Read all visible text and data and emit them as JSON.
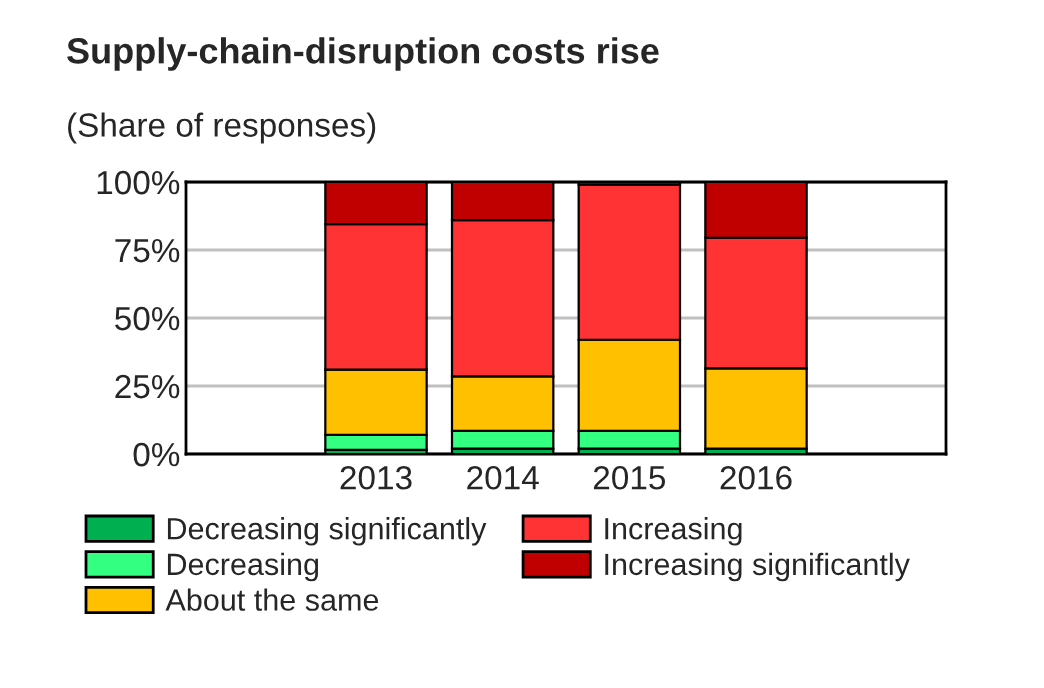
{
  "chart_data": {
    "type": "bar",
    "title": "Supply-chain-disruption costs rise",
    "subtitle": "(Share of responses)",
    "stacked": true,
    "categories": [
      null,
      "2013",
      "2014",
      "2015",
      "2016",
      null
    ],
    "series": [
      {
        "name": "Decreasing significantly",
        "color": "#00b050",
        "values": [
          null,
          1.5,
          2,
          2,
          2,
          null
        ]
      },
      {
        "name": "Decreasing",
        "color": "#33ff80",
        "values": [
          null,
          5.5,
          6.5,
          6.5,
          0,
          null
        ]
      },
      {
        "name": "About the same",
        "color": "#ffc000",
        "values": [
          null,
          24,
          20,
          33.5,
          29.5,
          null
        ]
      },
      {
        "name": "Increasing",
        "color": "#ff3333",
        "values": [
          null,
          53.5,
          57.5,
          57,
          48,
          null
        ]
      },
      {
        "name": "Increasing significantly",
        "color": "#c00000",
        "values": [
          null,
          15.5,
          14,
          1,
          20.5,
          null
        ]
      }
    ],
    "ylim": [
      0,
      100
    ],
    "yticks": [
      {
        "value": 0,
        "label": "0%"
      },
      {
        "value": 25,
        "label": "25%"
      },
      {
        "value": 50,
        "label": "50%"
      },
      {
        "value": 75,
        "label": "75%"
      },
      {
        "value": 100,
        "label": "100%"
      }
    ],
    "grid": "y",
    "legend": "bottom"
  }
}
